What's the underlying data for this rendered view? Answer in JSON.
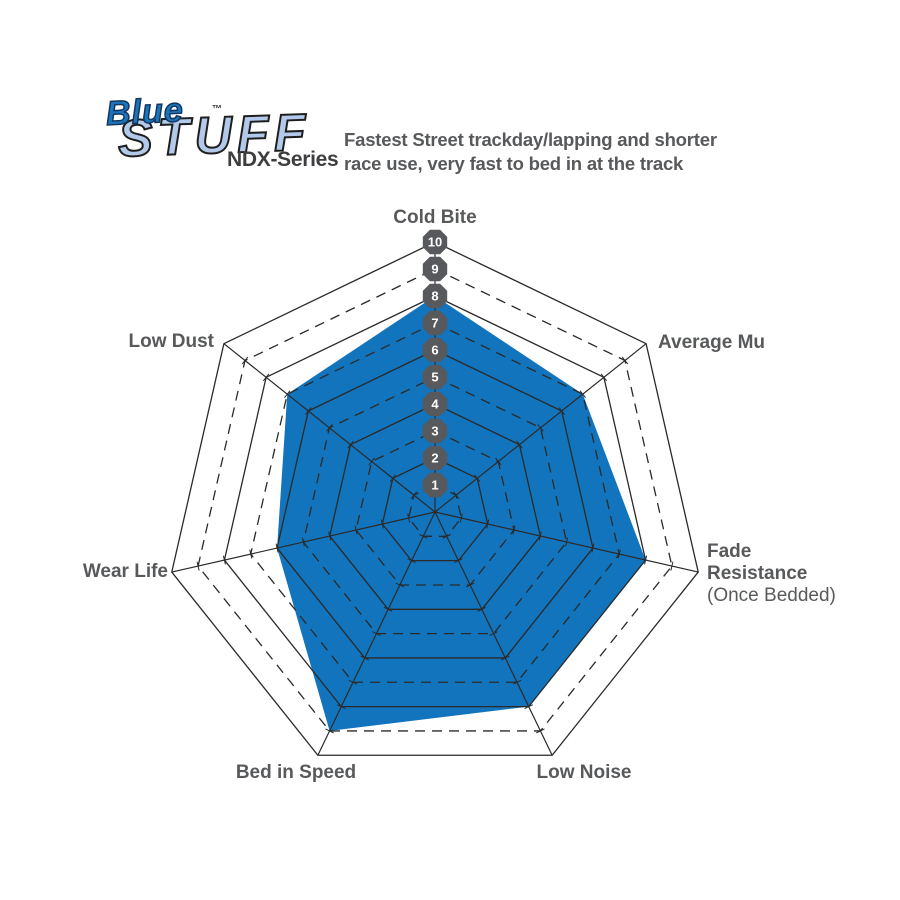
{
  "header": {
    "logo": {
      "word1": "Blue",
      "word2": "STUFF",
      "trademark": "™",
      "series": "NDX-Series"
    },
    "title_lines": [
      "Fastest Street trackday/lapping and shorter",
      "race use, very fast to bed in at the track"
    ]
  },
  "chart_data": {
    "type": "radar",
    "title": "Fastest Street trackday/lapping and shorter race use, very fast to bed in at the track",
    "categories": [
      "Cold Bite",
      "Average Mu",
      "Fade Resistance",
      "Low Noise",
      "Bed in Speed",
      "Wear Life",
      "Low Dust"
    ],
    "sublabels": {
      "2": "(Once Bedded)"
    },
    "values": [
      8,
      7,
      8,
      8,
      9,
      6,
      7
    ],
    "range": [
      0,
      10
    ],
    "rings": 10,
    "tick_labels": [
      "1",
      "2",
      "3",
      "4",
      "5",
      "6",
      "7",
      "8",
      "9",
      "10"
    ],
    "grid": "concentric heptagons, even rings solid, odd rings dashed, ticks on spokes",
    "legend": "none",
    "colors": {
      "fill": "#1274BC",
      "grid": "#2B2A29",
      "badge": "#58595C",
      "badge_text": "#FFFFFF",
      "label": "#58595B"
    }
  }
}
